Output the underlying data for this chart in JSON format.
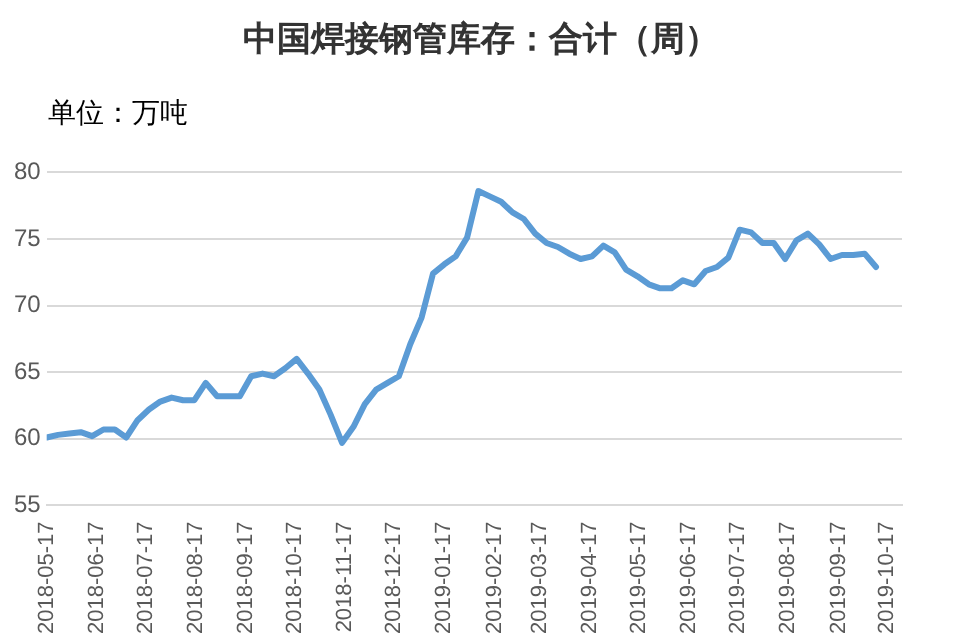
{
  "chart_data": {
    "type": "line",
    "title": "中国焊接钢管库存：合计（周）",
    "annotations": [
      "单位：万吨"
    ],
    "x": [
      "2018-05-17",
      "2018-05-24",
      "2018-05-31",
      "2018-06-07",
      "2018-06-14",
      "2018-06-21",
      "2018-06-28",
      "2018-07-05",
      "2018-07-12",
      "2018-07-19",
      "2018-07-26",
      "2018-08-02",
      "2018-08-09",
      "2018-08-16",
      "2018-08-23",
      "2018-08-30",
      "2018-09-06",
      "2018-09-13",
      "2018-09-20",
      "2018-09-27",
      "2018-10-04",
      "2018-10-11",
      "2018-10-18",
      "2018-10-25",
      "2018-11-01",
      "2018-11-08",
      "2018-11-15",
      "2018-11-22",
      "2018-11-29",
      "2018-12-06",
      "2018-12-13",
      "2018-12-20",
      "2018-12-27",
      "2019-01-03",
      "2019-01-10",
      "2019-01-17",
      "2019-01-24",
      "2019-01-31",
      "2019-02-07",
      "2019-02-14",
      "2019-02-21",
      "2019-02-28",
      "2019-03-07",
      "2019-03-14",
      "2019-03-21",
      "2019-03-28",
      "2019-04-04",
      "2019-04-11",
      "2019-04-18",
      "2019-04-25",
      "2019-05-02",
      "2019-05-09",
      "2019-05-16",
      "2019-05-23",
      "2019-05-30",
      "2019-06-06",
      "2019-06-13",
      "2019-06-20",
      "2019-06-27",
      "2019-07-04",
      "2019-07-11",
      "2019-07-18",
      "2019-07-25",
      "2019-08-01",
      "2019-08-08",
      "2019-08-15",
      "2019-08-22",
      "2019-08-29",
      "2019-09-05",
      "2019-09-12",
      "2019-09-19",
      "2019-09-26",
      "2019-10-03",
      "2019-10-10"
    ],
    "series": [
      {
        "color": "#5b9bd5",
        "values": [
          60.1,
          60.3,
          60.4,
          60.5,
          60.2,
          60.7,
          60.7,
          60.1,
          61.4,
          62.2,
          62.8,
          63.1,
          62.9,
          62.9,
          64.2,
          63.2,
          63.2,
          63.2,
          64.7,
          64.9,
          64.7,
          65.3,
          66.0,
          64.9,
          63.7,
          61.8,
          59.7,
          60.9,
          62.6,
          63.7,
          64.2,
          64.7,
          67.1,
          69.1,
          72.4,
          73.1,
          73.7,
          75.1,
          78.6,
          78.2,
          77.8,
          77.0,
          76.5,
          75.4,
          74.7,
          74.4,
          73.9,
          73.5,
          73.7,
          74.5,
          74.0,
          72.7,
          72.2,
          71.6,
          71.3,
          71.3,
          71.9,
          71.6,
          72.6,
          72.9,
          73.6,
          75.7,
          75.5,
          74.7,
          74.7,
          73.5,
          74.9,
          75.4,
          74.6,
          73.5,
          73.8,
          73.8,
          73.9,
          72.9
        ]
      }
    ],
    "xlim": [
      "2018-05-17",
      "2019-10-26"
    ],
    "xticks": [
      "2018-05-17",
      "2018-06-17",
      "2018-07-17",
      "2018-08-17",
      "2018-09-17",
      "2018-10-17",
      "2018-11-17",
      "2018-12-17",
      "2019-01-17",
      "2019-02-17",
      "2019-03-17",
      "2019-04-17",
      "2019-05-17",
      "2019-06-17",
      "2019-07-17",
      "2019-08-17",
      "2019-09-17",
      "2019-10-17"
    ],
    "ylim": [
      55,
      80
    ],
    "yticks": [
      55,
      60,
      65,
      70,
      75,
      80
    ],
    "grid": "y",
    "legend": false,
    "marker": "none",
    "line_style": "solid"
  }
}
